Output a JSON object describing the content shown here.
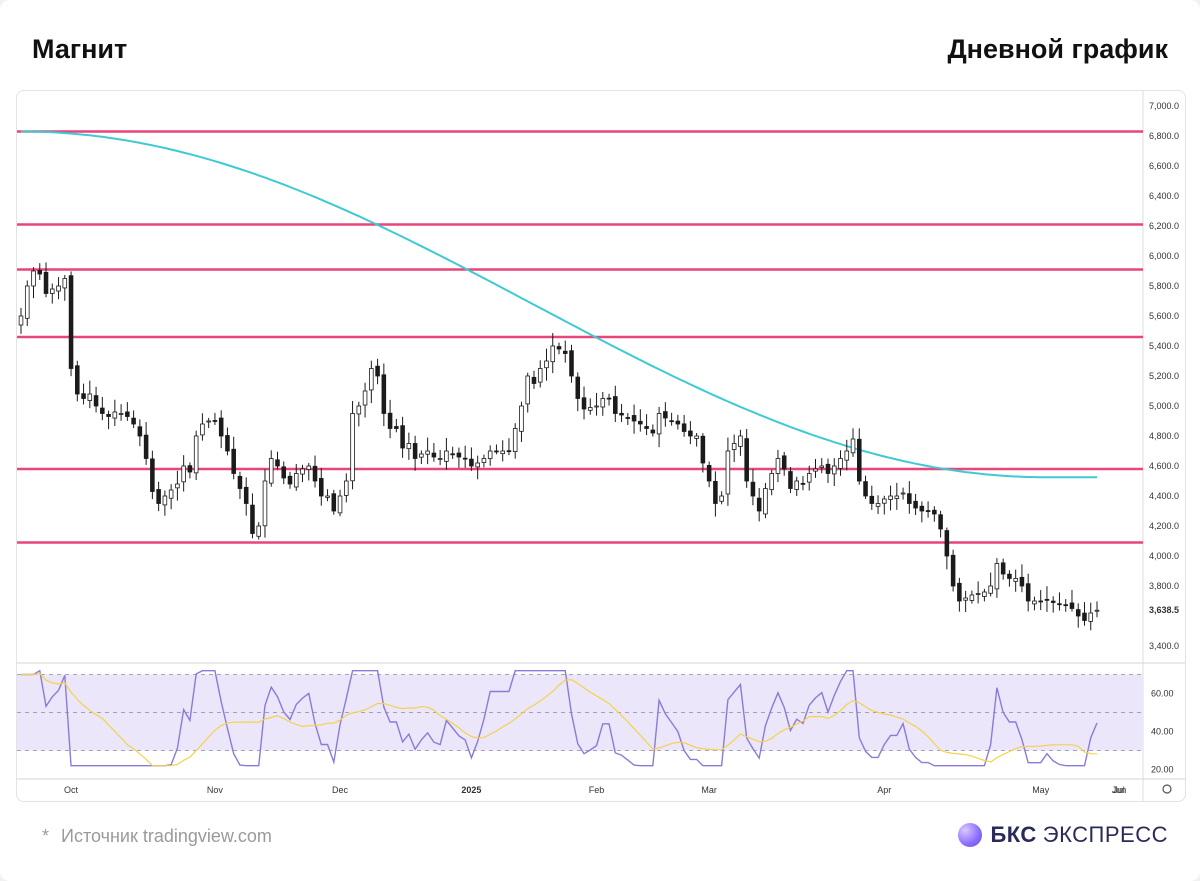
{
  "header": {
    "title_left": "Магнит",
    "title_right": "Дневной график"
  },
  "footer": {
    "source_star": "*",
    "source": "Источник tradingview.com",
    "brand_bold": "БКС",
    "brand_rest": "ЭКСПРЕСС"
  },
  "colors": {
    "up": "#ffffff",
    "down": "#1b1b1b",
    "ma": "#3fc9d6",
    "levels": "#e8457a",
    "rsi": "#8c7ad8",
    "rsi_ma": "#f2d34a",
    "rsi_band": "#ece6fb"
  },
  "chart_data": [
    {
      "type": "candlestick",
      "title": "",
      "ylim": [
        3300,
        7100
      ],
      "y_ticks": [
        "7,000.0",
        "6,800.0",
        "6,600.0",
        "6,400.0",
        "6,200.0",
        "6,000.0",
        "5,800.0",
        "5,600.0",
        "5,400.0",
        "5,200.0",
        "5,000.0",
        "4,800.0",
        "4,600.0",
        "4,400.0",
        "4,200.0",
        "4,000.0",
        "3,800.0",
        "3,400.0"
      ],
      "y_tick_values": [
        7000,
        6800,
        6600,
        6400,
        6200,
        6000,
        5800,
        5600,
        5400,
        5200,
        5000,
        4800,
        4600,
        4400,
        4200,
        4000,
        3800,
        3400
      ],
      "last_price_label": "3,638.5",
      "last_price": 3638.5,
      "x_labels": [
        "Oct",
        "Nov",
        "Dec",
        "2025",
        "Feb",
        "Mar",
        "Apr",
        "May",
        "Jun",
        "Jul"
      ],
      "x_label_index": [
        8,
        31,
        51,
        72,
        92,
        110,
        138,
        163,
        187,
        211
      ],
      "horizontal_levels": [
        6830,
        6210,
        5910,
        5460,
        4580,
        4090
      ],
      "close_series": [
        5600,
        5800,
        5900,
        5880,
        5750,
        5780,
        5800,
        5850,
        5250,
        5080,
        5050,
        5080,
        5000,
        4950,
        4930,
        4960,
        4950,
        4930,
        4880,
        4800,
        4650,
        4430,
        4350,
        4400,
        4440,
        4480,
        4600,
        4560,
        4800,
        4880,
        4900,
        4900,
        4800,
        4700,
        4550,
        4450,
        4350,
        4150,
        4200,
        4500,
        4650,
        4600,
        4520,
        4480,
        4550,
        4580,
        4600,
        4500,
        4400,
        4400,
        4300,
        4400,
        4500,
        4950,
        5000,
        5100,
        5250,
        5200,
        4950,
        4850,
        4850,
        4720,
        4750,
        4650,
        4680,
        4700,
        4660,
        4650,
        4700,
        4680,
        4660,
        4650,
        4600,
        4620,
        4650,
        4700,
        4700,
        4700,
        4700,
        4850,
        5000,
        5200,
        5150,
        5250,
        5300,
        5400,
        5380,
        5350,
        5200,
        5050,
        4980,
        4990,
        5000,
        5050,
        5050,
        4950,
        4940,
        4920,
        4900,
        4880,
        4850,
        4820,
        4950,
        4920,
        4900,
        4880,
        4830,
        4800,
        4800,
        4620,
        4500,
        4350,
        4400,
        4700,
        4750,
        4800,
        4500,
        4400,
        4300,
        4450,
        4550,
        4650,
        4580,
        4450,
        4500,
        4480,
        4550,
        4580,
        4600,
        4550,
        4600,
        4650,
        4700,
        4780,
        4500,
        4400,
        4350,
        4350,
        4380,
        4400,
        4400,
        4420,
        4350,
        4320,
        4300,
        4300,
        4280,
        4180,
        4000,
        3800,
        3700,
        3720,
        3740,
        3750,
        3760,
        3800,
        3950,
        3880,
        3850,
        3850,
        3800,
        3700,
        3700,
        3700,
        3710,
        3690,
        3680,
        3670,
        3650,
        3600,
        3570,
        3620,
        3638.5
      ],
      "moving_average": {
        "start": 6830,
        "end": 4525
      }
    },
    {
      "type": "line",
      "title": "",
      "ylim": [
        15,
        75
      ],
      "y_ticks": [
        "60.00",
        "40.00",
        "20.00"
      ],
      "y_tick_values": [
        60,
        40,
        20
      ],
      "bands": [
        30,
        50,
        70
      ]
    }
  ]
}
